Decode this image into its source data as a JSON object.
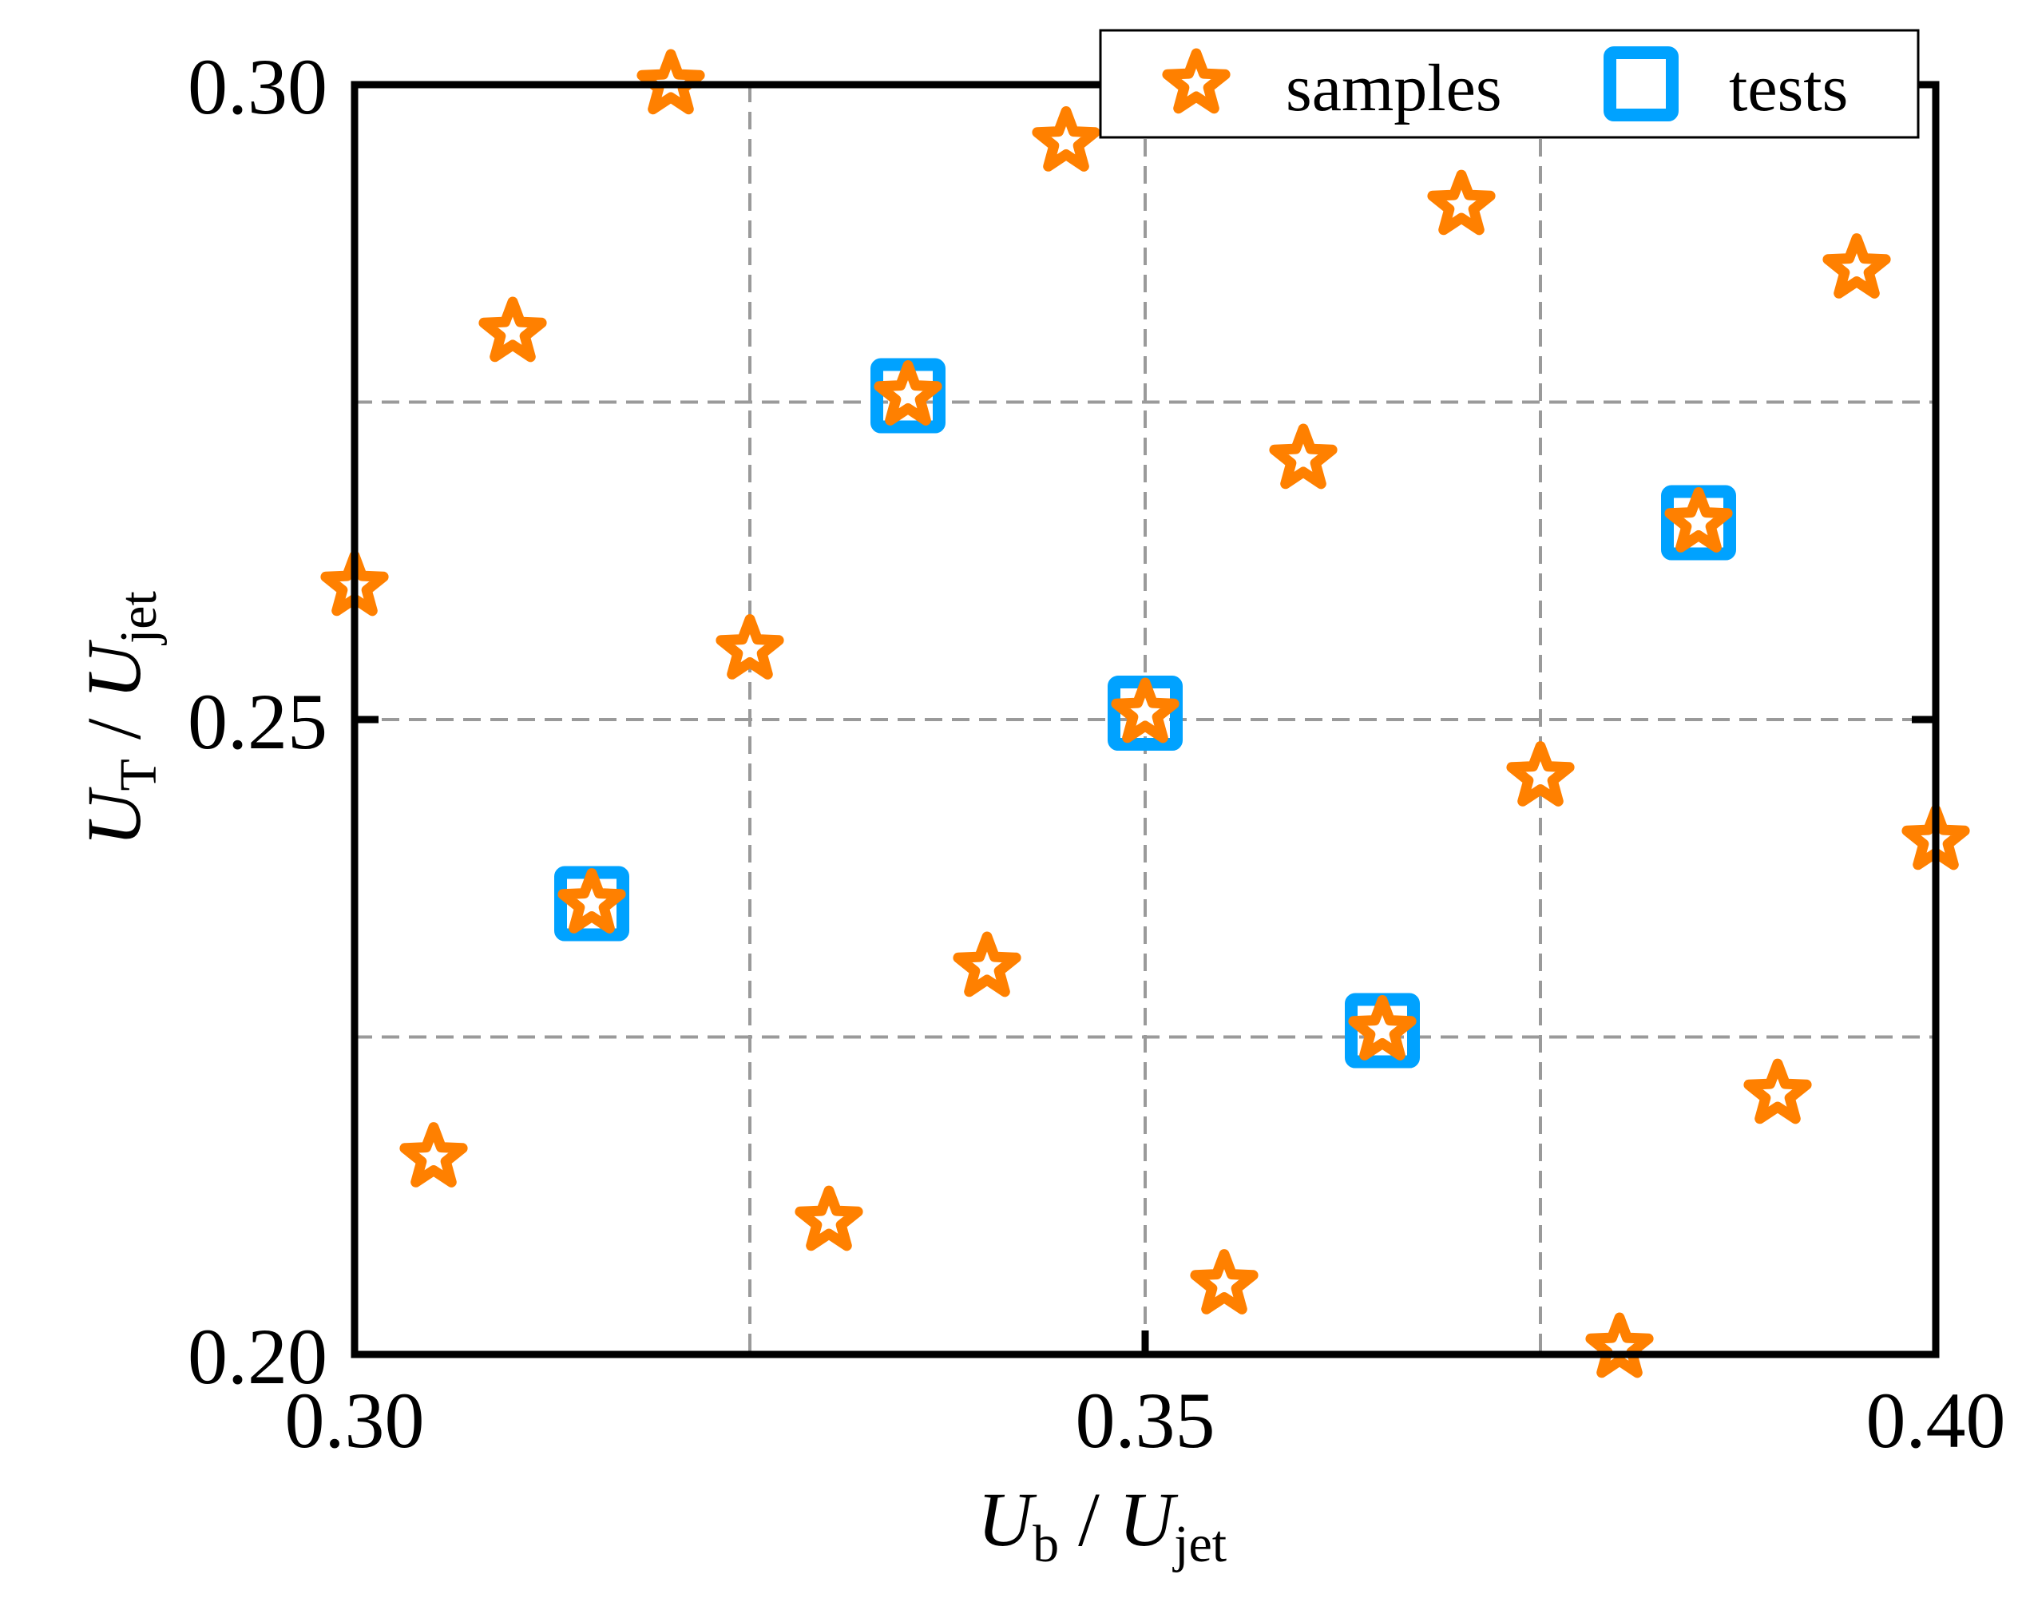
{
  "chart_data": {
    "type": "scatter",
    "title": "",
    "xlabel": {
      "main": "U",
      "sub": "b",
      "rest": " / ",
      "main2": "U",
      "sub2": "jet"
    },
    "ylabel": {
      "main": "U",
      "sub": "T",
      "rest": " / ",
      "main2": "U",
      "sub2": "jet"
    },
    "xlim": [
      0.3,
      0.4
    ],
    "ylim": [
      0.2,
      0.3
    ],
    "xticks": [
      0.3,
      0.35,
      0.4
    ],
    "yticks": [
      0.2,
      0.25,
      0.3
    ],
    "xtick_labels": [
      "0.30",
      "0.35",
      "0.40"
    ],
    "ytick_labels": [
      "0.20",
      "0.25",
      "0.30"
    ],
    "grid_x": [
      0.325,
      0.35,
      0.375
    ],
    "grid_y": [
      0.225,
      0.25,
      0.275
    ],
    "grid": true,
    "legend_position": "top-right",
    "colors": {
      "samples": "#ff8000",
      "tests": "#00a2ff",
      "grid": "#9a9a9a"
    },
    "series": [
      {
        "name": "samples",
        "marker": "star",
        "points": [
          [
            0.3,
            0.2605
          ],
          [
            0.305,
            0.2155
          ],
          [
            0.31,
            0.2805
          ],
          [
            0.32,
            0.3
          ],
          [
            0.325,
            0.2555
          ],
          [
            0.33,
            0.2105
          ],
          [
            0.335,
            0.2755
          ],
          [
            0.34,
            0.2305
          ],
          [
            0.345,
            0.2955
          ],
          [
            0.35,
            0.2505
          ],
          [
            0.355,
            0.2055
          ],
          [
            0.36,
            0.2705
          ],
          [
            0.365,
            0.2255
          ],
          [
            0.37,
            0.2905
          ],
          [
            0.375,
            0.2455
          ],
          [
            0.38,
            0.2005
          ],
          [
            0.385,
            0.2655
          ],
          [
            0.39,
            0.2205
          ],
          [
            0.395,
            0.2855
          ],
          [
            0.4,
            0.2405
          ],
          [
            0.315,
            0.2355
          ]
        ]
      },
      {
        "name": "tests",
        "marker": "square",
        "points": [
          [
            0.315,
            0.2355
          ],
          [
            0.335,
            0.2755
          ],
          [
            0.35,
            0.2505
          ],
          [
            0.365,
            0.2255
          ],
          [
            0.385,
            0.2655
          ]
        ]
      }
    ]
  }
}
